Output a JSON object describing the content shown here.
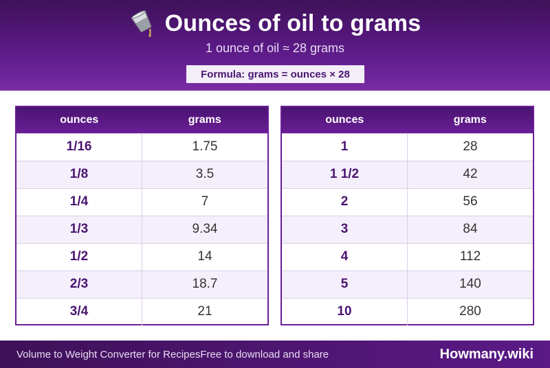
{
  "header": {
    "title": "Ounces of oil to grams",
    "subtitle": "1 ounce of oil ≈ 28 grams",
    "formula": "Formula: grams = ounces × 28",
    "icon": "oil-pour-icon"
  },
  "left_table": {
    "col_ounces": "ounces",
    "col_grams": "grams",
    "rows": [
      {
        "ounces": "1/16",
        "grams": "1.75"
      },
      {
        "ounces": "1/8",
        "grams": "3.5"
      },
      {
        "ounces": "1/4",
        "grams": "7"
      },
      {
        "ounces": "1/3",
        "grams": "9.34"
      },
      {
        "ounces": "1/2",
        "grams": "14"
      },
      {
        "ounces": "2/3",
        "grams": "18.7"
      },
      {
        "ounces": "3/4",
        "grams": "21"
      }
    ]
  },
  "right_table": {
    "col_ounces": "ounces",
    "col_grams": "grams",
    "rows": [
      {
        "ounces": "1",
        "grams": "28"
      },
      {
        "ounces": "1 1/2",
        "grams": "42"
      },
      {
        "ounces": "2",
        "grams": "56"
      },
      {
        "ounces": "3",
        "grams": "84"
      },
      {
        "ounces": "4",
        "grams": "112"
      },
      {
        "ounces": "5",
        "grams": "140"
      },
      {
        "ounces": "10",
        "grams": "280"
      }
    ]
  },
  "footer": {
    "left_text": "Volume to Weight Converter for RecipesFree to download and share",
    "brand": "Howmany.wiki"
  },
  "colors": {
    "header_purple": "#5b1a87",
    "accent_text": "#4a1470",
    "alt_row": "#f4effa"
  }
}
